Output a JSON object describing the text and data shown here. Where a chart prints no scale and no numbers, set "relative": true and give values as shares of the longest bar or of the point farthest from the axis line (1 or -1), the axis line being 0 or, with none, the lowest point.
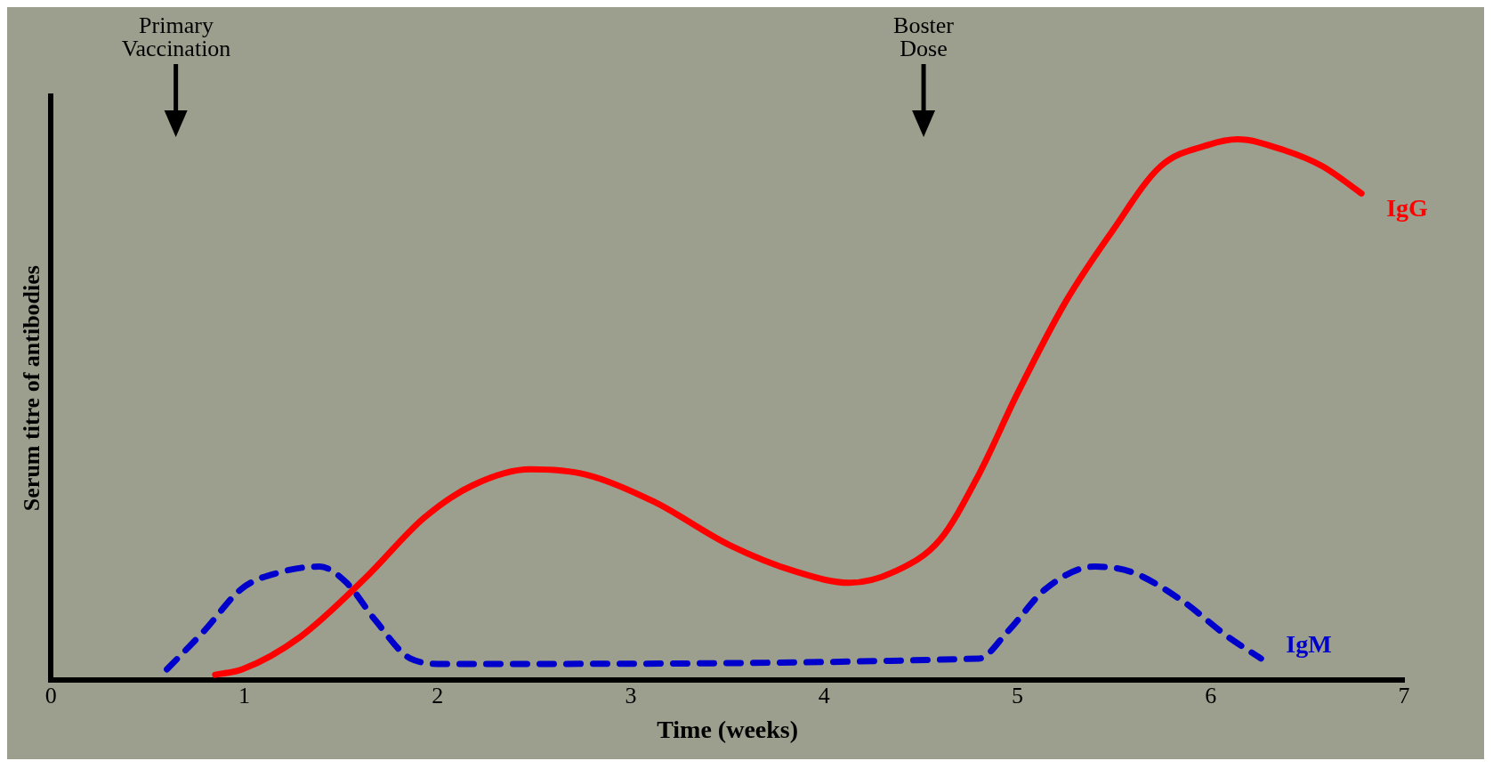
{
  "chart_data": {
    "type": "line",
    "xlabel": "Time (weeks)",
    "ylabel": "Serum titre of antibodies",
    "relative": true,
    "xlim": [
      0,
      7
    ],
    "xticks": [
      0,
      1,
      2,
      3,
      4,
      5,
      6,
      7
    ],
    "legend": false,
    "marker": "none",
    "annotations": [
      "Primary\nVaccination",
      "Boster\nDose"
    ],
    "series": [
      {
        "name": "IgG",
        "color": "#ff0000",
        "line_style": "solid",
        "x": [
          0.85,
          0.99,
          1.29,
          1.63,
          1.93,
          2.18,
          2.48,
          2.77,
          3.12,
          3.51,
          3.86,
          4.13,
          4.36,
          4.6,
          4.8,
          5.0,
          5.25,
          5.49,
          5.74,
          5.99,
          6.14,
          6.38,
          6.58,
          6.78
        ],
        "values": [
          0.01,
          0.02,
          0.08,
          0.19,
          0.3,
          0.36,
          0.39,
          0.38,
          0.33,
          0.25,
          0.2,
          0.18,
          0.2,
          0.26,
          0.38,
          0.53,
          0.7,
          0.83,
          0.95,
          0.99,
          1.0,
          0.98,
          0.95,
          0.9
        ]
      },
      {
        "name": "IgM",
        "color": "#0000cc",
        "line_style": "dashed",
        "x": [
          0.6,
          0.79,
          0.99,
          1.19,
          1.39,
          1.53,
          1.68,
          1.86,
          2.03,
          4.8,
          4.95,
          5.15,
          5.4,
          5.59,
          5.84,
          6.09,
          6.26
        ],
        "values": [
          0.02,
          0.09,
          0.17,
          0.2,
          0.21,
          0.18,
          0.11,
          0.04,
          0.03,
          0.04,
          0.09,
          0.17,
          0.21,
          0.2,
          0.15,
          0.08,
          0.04
        ]
      }
    ]
  }
}
